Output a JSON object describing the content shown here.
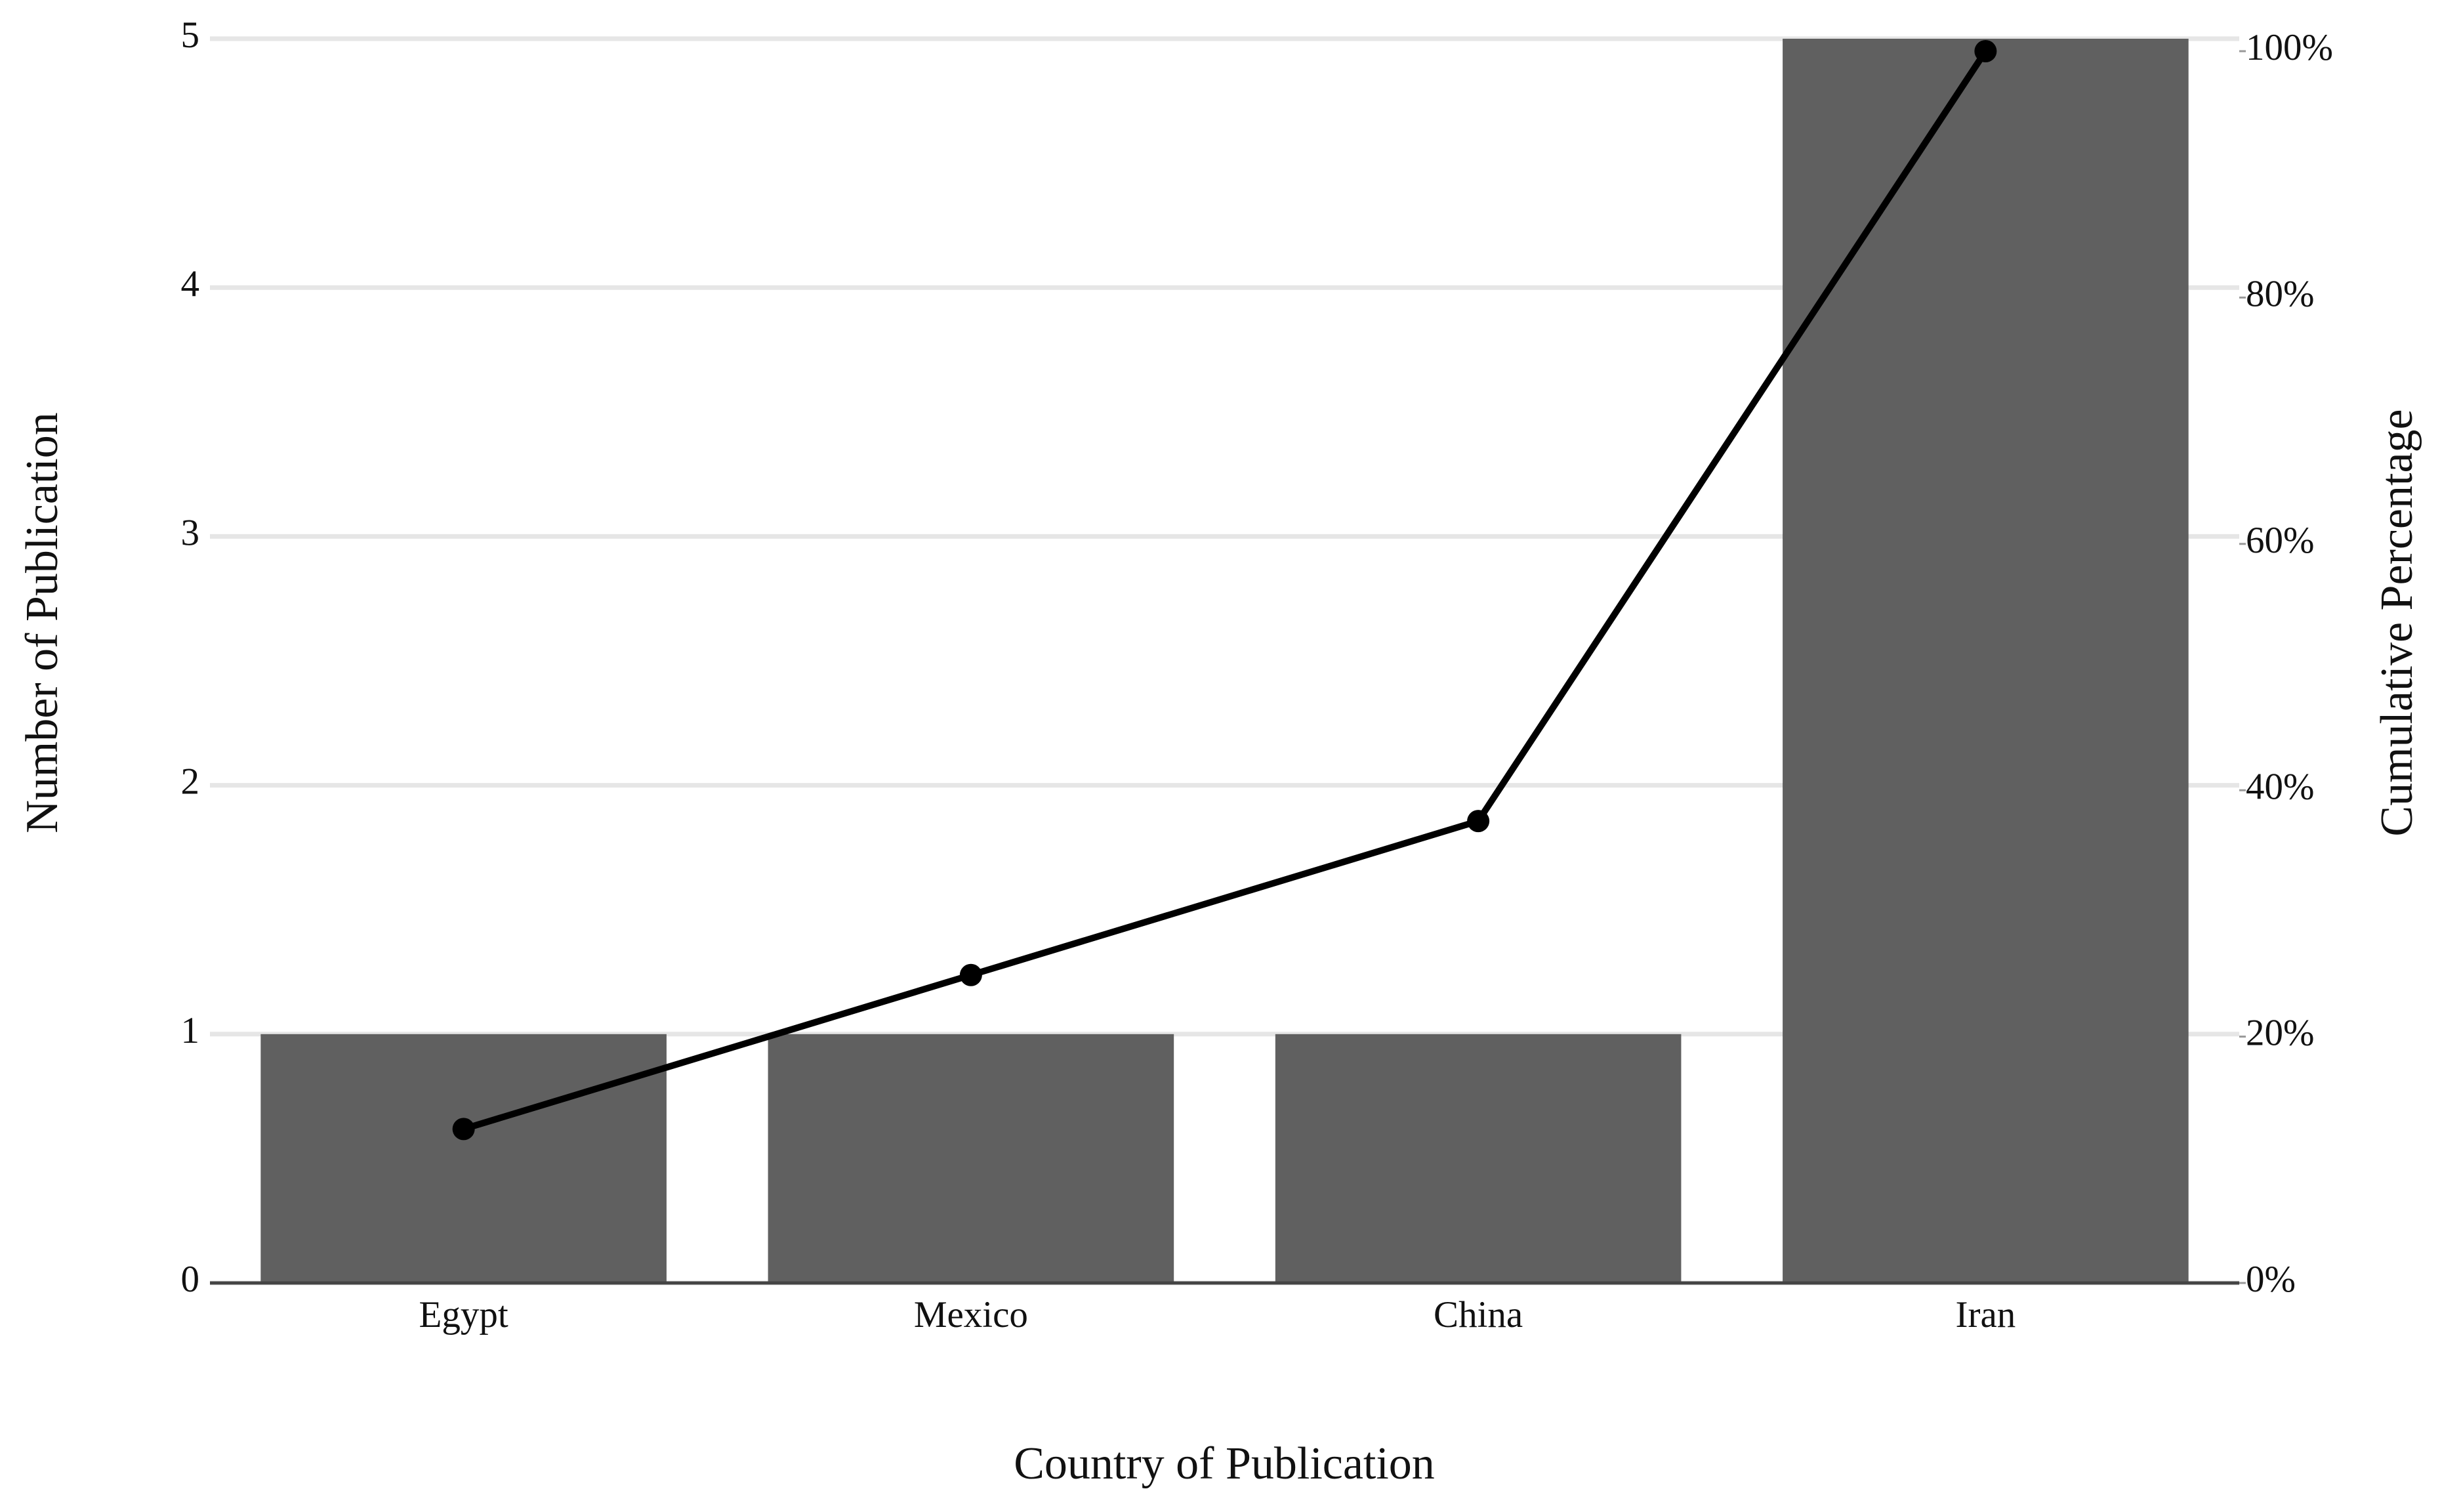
{
  "chart_data": {
    "type": "bar",
    "xlabel": "Country of Publication",
    "ylabel": "Number of Publication",
    "y2label": "Cumulative Percentage",
    "categories": [
      "Egypt",
      "Mexico",
      "China",
      "Iran"
    ],
    "series": [
      {
        "type": "bar",
        "color": "#606060",
        "values": [
          1,
          1,
          1,
          5
        ]
      },
      {
        "type": "line",
        "axis": "y2",
        "color": "#000000",
        "values": [
          12.5,
          25,
          37.5,
          100
        ]
      }
    ],
    "ylim": [
      0,
      5
    ],
    "yticks": [
      0,
      1,
      2,
      3,
      4,
      5
    ],
    "y2lim": [
      0,
      100
    ],
    "y2ticks": [
      {
        "value": 0,
        "label": "0%"
      },
      {
        "value": 20,
        "label": "20%"
      },
      {
        "value": 40,
        "label": "40%"
      },
      {
        "value": 60,
        "label": "60%"
      },
      {
        "value": 80,
        "label": "80%"
      },
      {
        "value": 100,
        "label": "100%"
      }
    ],
    "grid": true
  }
}
